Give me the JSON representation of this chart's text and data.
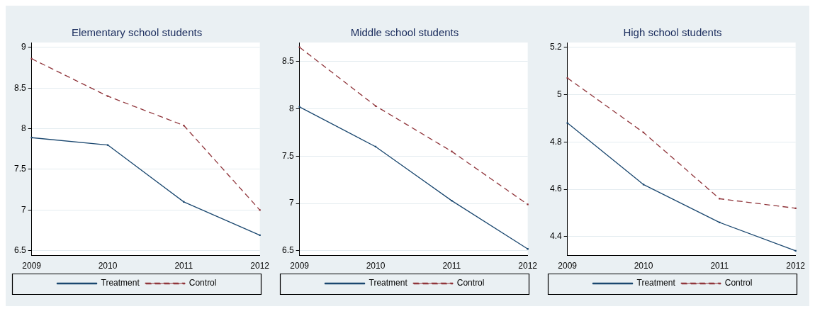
{
  "chart_data": [
    {
      "type": "line",
      "title": "Elementary school students",
      "categories": [
        "2009",
        "2010",
        "2011",
        "2012"
      ],
      "ylim": [
        6.44,
        9.06
      ],
      "yticks": [
        6.5,
        7,
        7.5,
        8,
        8.5,
        9
      ],
      "grid": "y",
      "legend": "bottom",
      "marker": "square",
      "series": [
        {
          "name": "Treatment",
          "color": "#1a476f",
          "line_style": "solid",
          "values": [
            7.89,
            7.8,
            7.1,
            6.69
          ]
        },
        {
          "name": "Control",
          "color": "#90353b",
          "line_style": "dashed",
          "values": [
            8.86,
            8.4,
            8.04,
            7.0
          ]
        }
      ]
    },
    {
      "type": "line",
      "title": "Middle school students",
      "categories": [
        "2009",
        "2010",
        "2011",
        "2012"
      ],
      "ylim": [
        6.45,
        8.7
      ],
      "yticks": [
        6.5,
        7,
        7.5,
        8,
        8.5
      ],
      "grid": "y",
      "legend": "bottom",
      "marker": "square",
      "series": [
        {
          "name": "Treatment",
          "color": "#1a476f",
          "line_style": "solid",
          "values": [
            8.02,
            7.6,
            7.03,
            6.52
          ]
        },
        {
          "name": "Control",
          "color": "#90353b",
          "line_style": "dashed",
          "values": [
            8.65,
            8.03,
            7.55,
            6.99
          ]
        }
      ]
    },
    {
      "type": "line",
      "title": "High school students",
      "categories": [
        "2009",
        "2010",
        "2011",
        "2012"
      ],
      "ylim": [
        4.32,
        5.22
      ],
      "yticks": [
        4.4,
        4.6,
        4.8,
        5,
        5.2
      ],
      "grid": "y",
      "legend": "bottom",
      "marker": "square",
      "series": [
        {
          "name": "Treatment",
          "color": "#1a476f",
          "line_style": "solid",
          "values": [
            4.88,
            4.62,
            4.46,
            4.34
          ]
        },
        {
          "name": "Control",
          "color": "#90353b",
          "line_style": "dashed",
          "values": [
            5.07,
            4.84,
            4.56,
            4.52
          ]
        }
      ]
    }
  ]
}
